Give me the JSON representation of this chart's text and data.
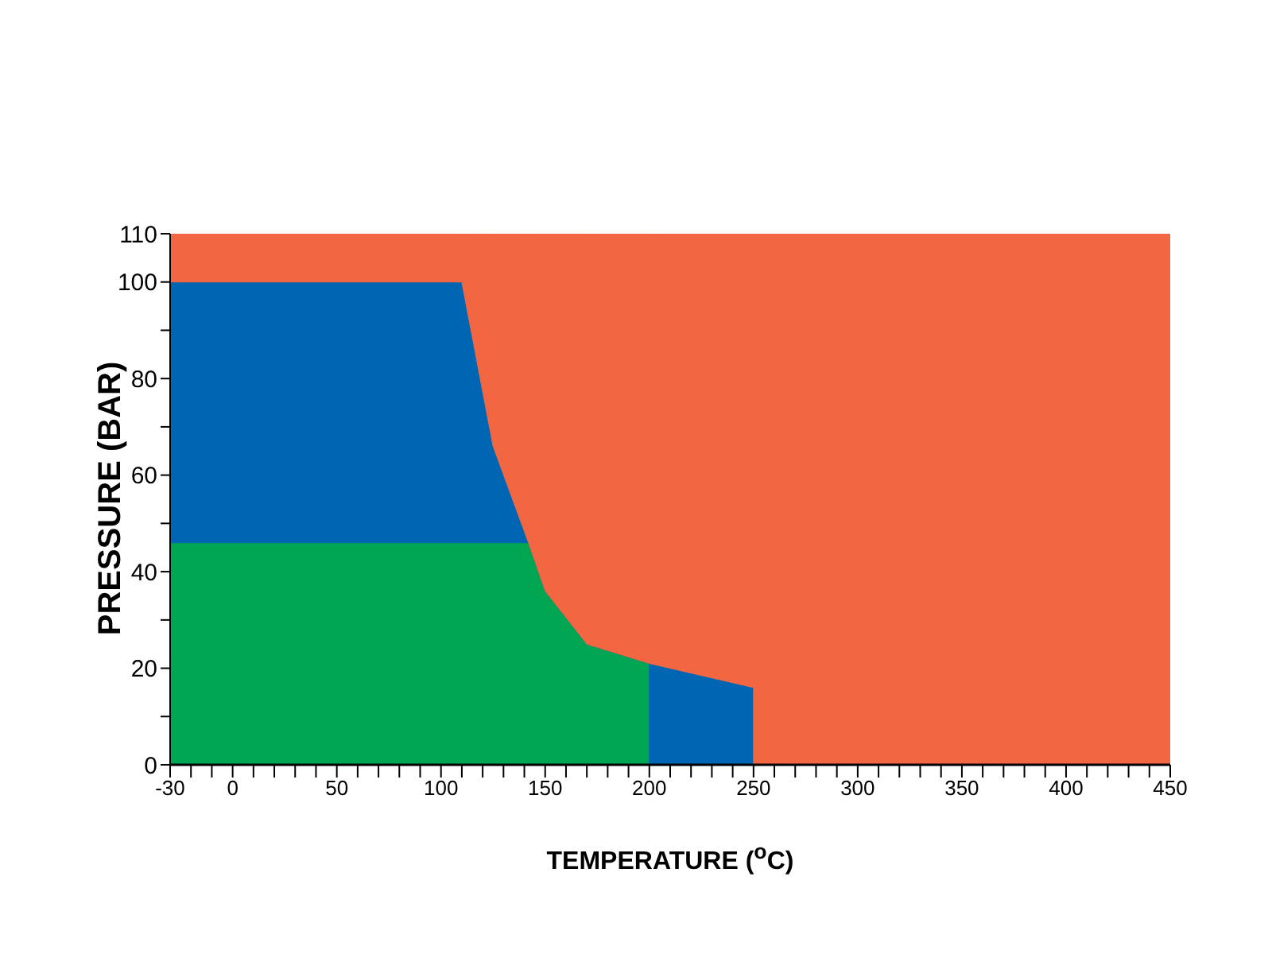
{
  "chart_data": {
    "type": "area",
    "xlabel": "TEMPERATURE ($^{o}$C)",
    "ylabel": "PRESSURE (BAR)",
    "xlim": [
      -30,
      450
    ],
    "ylim": [
      0,
      110
    ],
    "xticks": [
      -30,
      {
        "value": -20,
        "label": null
      },
      {
        "value": -10,
        "label": null
      },
      0,
      {
        "value": 10,
        "label": null
      },
      {
        "value": 20,
        "label": null
      },
      {
        "value": 30,
        "label": null
      },
      {
        "value": 40,
        "label": null
      },
      50,
      {
        "value": 60,
        "label": null
      },
      {
        "value": 70,
        "label": null
      },
      {
        "value": 80,
        "label": null
      },
      {
        "value": 90,
        "label": null
      },
      100,
      {
        "value": 110,
        "label": null
      },
      {
        "value": 120,
        "label": null
      },
      {
        "value": 130,
        "label": null
      },
      {
        "value": 140,
        "label": null
      },
      150,
      {
        "value": 160,
        "label": null
      },
      {
        "value": 170,
        "label": null
      },
      {
        "value": 180,
        "label": null
      },
      {
        "value": 190,
        "label": null
      },
      200,
      {
        "value": 210,
        "label": null
      },
      {
        "value": 220,
        "label": null
      },
      {
        "value": 230,
        "label": null
      },
      {
        "value": 240,
        "label": null
      },
      250,
      {
        "value": 260,
        "label": null
      },
      {
        "value": 270,
        "label": null
      },
      {
        "value": 280,
        "label": null
      },
      {
        "value": 290,
        "label": null
      },
      300,
      {
        "value": 310,
        "label": null
      },
      {
        "value": 320,
        "label": null
      },
      {
        "value": 330,
        "label": null
      },
      {
        "value": 340,
        "label": null
      },
      350,
      {
        "value": 360,
        "label": null
      },
      {
        "value": 370,
        "label": null
      },
      {
        "value": 380,
        "label": null
      },
      {
        "value": 390,
        "label": null
      },
      400,
      {
        "value": 410,
        "label": null
      },
      {
        "value": 420,
        "label": null
      },
      {
        "value": 430,
        "label": null
      },
      {
        "value": 440,
        "label": null
      },
      450
    ],
    "yticks": [
      0,
      {
        "value": 10,
        "label": null
      },
      20,
      {
        "value": 30,
        "label": null
      },
      40,
      {
        "value": 50,
        "label": null
      },
      60,
      {
        "value": 70,
        "label": null
      },
      80,
      {
        "value": 90,
        "label": null
      },
      100,
      110
    ],
    "grid": false,
    "legend": false,
    "stacked": true,
    "x": [
      -30,
      110,
      125,
      142,
      150,
      170,
      200,
      200,
      250,
      250,
      450
    ],
    "series": [
      {
        "color": "#00a651",
        "values": [
          46,
          46,
          46,
          46,
          36,
          25,
          21,
          0,
          0,
          0,
          0
        ]
      },
      {
        "color": "#0066b3",
        "values": [
          54,
          54,
          20,
          0,
          0,
          0,
          0,
          21,
          16,
          0,
          0
        ]
      },
      {
        "color": "#f26641",
        "values": [
          10,
          10,
          44,
          64,
          74,
          85,
          89,
          89,
          94,
          110,
          110
        ]
      }
    ]
  }
}
